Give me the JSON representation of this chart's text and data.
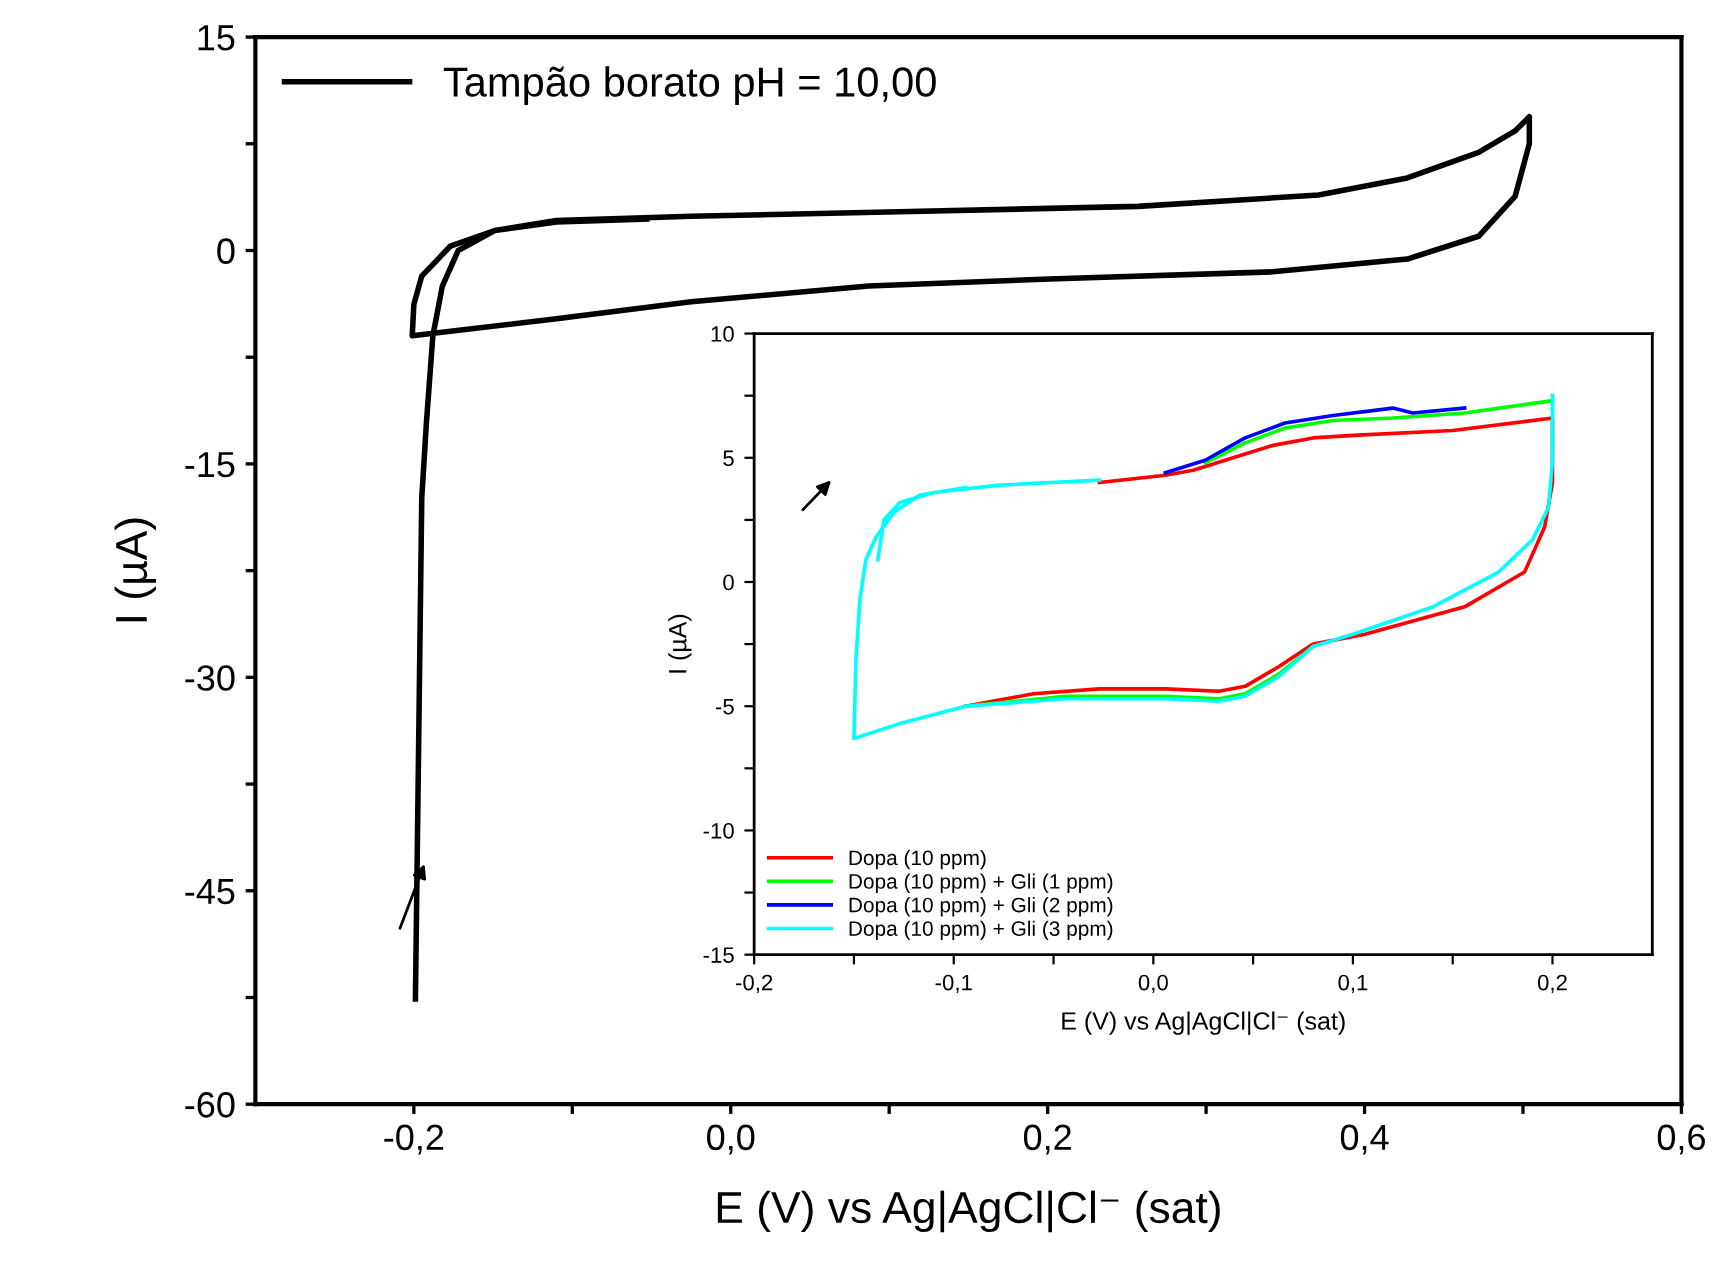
{
  "chart_data": [
    {
      "type": "line",
      "xlabel": "E (V) vs Ag|AgCl|Cl⁻ (sat)",
      "ylabel": "I (µA)",
      "legend": "top left",
      "grid": false,
      "marker": "none",
      "line_style": "solid",
      "xlim": [
        -0.3,
        0.6
      ],
      "ylim": [
        -60,
        15
      ],
      "xticks": [
        {
          "value": -0.2,
          "label": "-0,2"
        },
        {
          "value": -0.1,
          "label": null
        },
        {
          "value": 0.0,
          "label": "0,0"
        },
        {
          "value": 0.1,
          "label": null
        },
        {
          "value": 0.2,
          "label": "0,2"
        },
        {
          "value": 0.3,
          "label": null
        },
        {
          "value": 0.4,
          "label": "0,4"
        },
        {
          "value": 0.5,
          "label": null
        },
        {
          "value": 0.6,
          "label": "0,6"
        }
      ],
      "yticks": [
        -60,
        {
          "value": -52.5,
          "label": null
        },
        -45,
        {
          "value": -37.5,
          "label": null
        },
        -30,
        {
          "value": -22.5,
          "label": null
        },
        -15,
        {
          "value": -7.5,
          "label": null
        },
        0,
        {
          "value": 7.5,
          "label": null
        },
        15
      ],
      "series": [
        {
          "name": "Tampão borato pH = 10,00",
          "color": "#000000",
          "x": [
            -0.199,
            -0.197,
            -0.195,
            -0.192,
            -0.188,
            -0.182,
            -0.172,
            -0.149,
            -0.11,
            -0.025,
            0.099,
            0.257,
            0.371,
            0.427,
            0.472,
            0.495,
            0.504,
            0.504,
            0.495,
            0.472,
            0.427,
            0.342,
            0.201,
            0.087,
            -0.025,
            -0.11,
            -0.201,
            -0.2,
            -0.195,
            -0.177,
            -0.149,
            -0.11,
            -0.053
          ],
          "values": [
            -52.6,
            -35,
            -17.4,
            -12,
            -6,
            -2.5,
            0,
            1.4,
            2.1,
            2.4,
            2.7,
            3.1,
            3.9,
            5.1,
            6.9,
            8.4,
            9.4,
            7.5,
            3.8,
            1.0,
            -0.6,
            -1.5,
            -2.0,
            -2.5,
            -3.6,
            -4.8,
            -6.0,
            -3.8,
            -1.8,
            0.3,
            1.4,
            2.0,
            2.2
          ]
        }
      ]
    },
    {
      "type": "line",
      "xlabel": "E (V) vs Ag|AgCl|Cl⁻ (sat)",
      "ylabel": "I (µA)",
      "legend": "bottom left",
      "grid": false,
      "marker": "none",
      "line_style": "solid",
      "xlim": [
        -0.2,
        0.25
      ],
      "ylim": [
        -15,
        10
      ],
      "xticks": [
        {
          "value": -0.2,
          "label": "-0,2"
        },
        {
          "value": -0.15,
          "label": null
        },
        {
          "value": -0.1,
          "label": "-0,1"
        },
        {
          "value": -0.05,
          "label": null
        },
        {
          "value": 0.0,
          "label": "0,0"
        },
        {
          "value": 0.05,
          "label": null
        },
        {
          "value": 0.1,
          "label": "0,1"
        },
        {
          "value": 0.15,
          "label": null
        },
        {
          "value": 0.2,
          "label": "0,2"
        }
      ],
      "yticks": [
        -15,
        {
          "value": -12.5,
          "label": null
        },
        -10,
        {
          "value": -7.5,
          "label": null
        },
        -5,
        {
          "value": -2.5,
          "label": null
        },
        0,
        {
          "value": 2.5,
          "label": null
        },
        5,
        {
          "value": 7.5,
          "label": null
        },
        10
      ],
      "series": [
        {
          "name": "Dopa (10 ppm)",
          "color": "#ff0000",
          "x": [
            -0.027,
            0.006,
            0.02,
            0.04,
            0.06,
            0.08,
            0.1,
            0.15,
            0.2,
            0.2,
            0.196,
            0.186,
            0.156,
            0.106,
            0.08,
            0.063,
            0.046,
            0.033,
            0.006,
            -0.027,
            -0.06,
            -0.094
          ],
          "values": [
            4.0,
            4.3,
            4.5,
            5.0,
            5.5,
            5.8,
            5.9,
            6.1,
            6.6,
            4.0,
            2.2,
            0.4,
            -1.0,
            -2.1,
            -2.5,
            -3.4,
            -4.2,
            -4.4,
            -4.3,
            -4.3,
            -4.5,
            -5.0
          ]
        },
        {
          "name": "Dopa (10 ppm) + Gli (1 ppm)",
          "color": "#00ff00",
          "x": [
            0.026,
            0.046,
            0.066,
            0.09,
            0.12,
            0.156,
            0.2,
            null,
            0.08,
            0.063,
            0.046,
            0.033,
            0.006,
            -0.044,
            -0.094
          ],
          "values": [
            4.8,
            5.6,
            6.2,
            6.5,
            6.6,
            6.8,
            7.3,
            null,
            -2.6,
            -3.7,
            -4.5,
            -4.7,
            -4.6,
            -4.6,
            -5.0
          ]
        },
        {
          "name": "Dopa (10 ppm) + Gli (2 ppm)",
          "color": "#0000ff",
          "x": [
            0.006,
            0.026,
            0.046,
            0.066,
            0.09,
            0.12,
            0.13,
            0.156
          ],
          "values": [
            4.4,
            4.9,
            5.8,
            6.4,
            6.7,
            7.0,
            6.8,
            7.0
          ]
        },
        {
          "name": "Dopa (10 ppm) + Gli (3 ppm)",
          "color": "#00ffff",
          "x": [
            -0.138,
            -0.135,
            -0.127,
            -0.11,
            -0.077,
            -0.027,
            null,
            0.2,
            0.2,
            0.198,
            0.19,
            0.173,
            0.14,
            0.1,
            0.08,
            0.063,
            0.046,
            0.033,
            0.006,
            -0.044,
            -0.094,
            -0.127,
            -0.15,
            -0.149,
            -0.147,
            -0.144,
            -0.139,
            -0.13,
            -0.117,
            -0.094
          ],
          "values": [
            0.9,
            2.5,
            3.2,
            3.6,
            3.9,
            4.1,
            null,
            7.5,
            4.9,
            3.0,
            1.7,
            0.4,
            -1.0,
            -2.1,
            -2.6,
            -3.8,
            -4.6,
            -4.8,
            -4.7,
            -4.7,
            -5.0,
            -5.7,
            -6.3,
            -3.1,
            -0.7,
            0.9,
            1.8,
            2.8,
            3.5,
            3.8
          ]
        }
      ]
    }
  ]
}
